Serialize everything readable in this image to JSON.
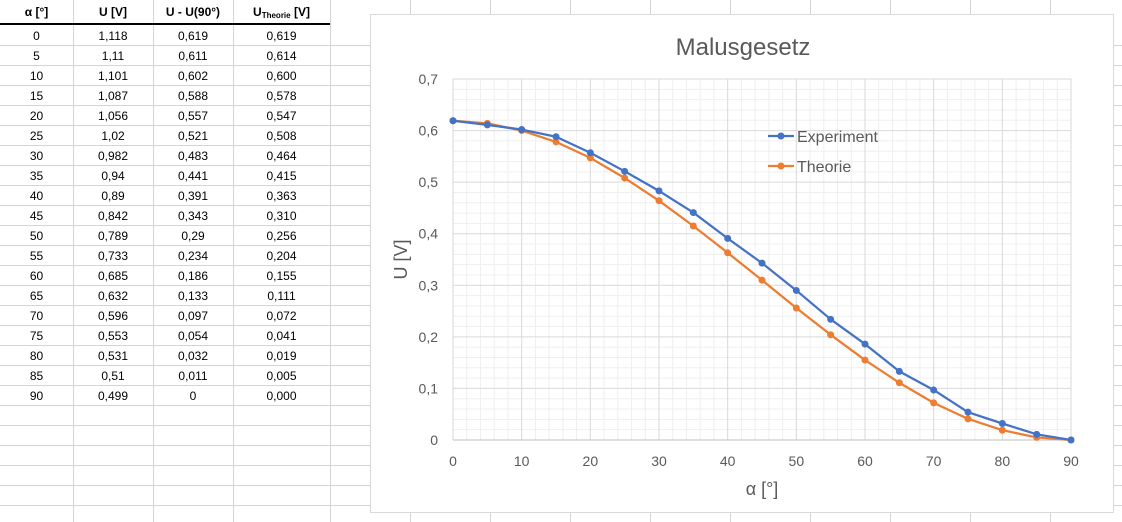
{
  "table": {
    "headers": {
      "alpha": "α [°]",
      "u": "U [V]",
      "u_minus": "U - U(90°)",
      "u_theorie_main": "U",
      "u_theorie_sub": "Theorie",
      "u_theorie_unit": " [V]"
    },
    "rows": [
      [
        "0",
        "1,118",
        "0,619",
        "0,619"
      ],
      [
        "5",
        "1,11",
        "0,611",
        "0,614"
      ],
      [
        "10",
        "1,101",
        "0,602",
        "0,600"
      ],
      [
        "15",
        "1,087",
        "0,588",
        "0,578"
      ],
      [
        "20",
        "1,056",
        "0,557",
        "0,547"
      ],
      [
        "25",
        "1,02",
        "0,521",
        "0,508"
      ],
      [
        "30",
        "0,982",
        "0,483",
        "0,464"
      ],
      [
        "35",
        "0,94",
        "0,441",
        "0,415"
      ],
      [
        "40",
        "0,89",
        "0,391",
        "0,363"
      ],
      [
        "45",
        "0,842",
        "0,343",
        "0,310"
      ],
      [
        "50",
        "0,789",
        "0,29",
        "0,256"
      ],
      [
        "55",
        "0,733",
        "0,234",
        "0,204"
      ],
      [
        "60",
        "0,685",
        "0,186",
        "0,155"
      ],
      [
        "65",
        "0,632",
        "0,133",
        "0,111"
      ],
      [
        "70",
        "0,596",
        "0,097",
        "0,072"
      ],
      [
        "75",
        "0,553",
        "0,054",
        "0,041"
      ],
      [
        "80",
        "0,531",
        "0,032",
        "0,019"
      ],
      [
        "85",
        "0,51",
        "0,011",
        "0,005"
      ],
      [
        "90",
        "0,499",
        "0",
        "0,000"
      ]
    ]
  },
  "chart_data": {
    "type": "line",
    "title": "Malusgesetz",
    "xlabel": "α [°]",
    "ylabel": "U [V]",
    "xlim": [
      0,
      90
    ],
    "ylim": [
      0,
      0.7
    ],
    "x_ticks": [
      0,
      10,
      20,
      30,
      40,
      50,
      60,
      70,
      80,
      90
    ],
    "x_tick_labels": [
      "0",
      "10",
      "20",
      "30",
      "40",
      "50",
      "60",
      "70",
      "80",
      "90"
    ],
    "y_ticks": [
      0,
      0.1,
      0.2,
      0.3,
      0.4,
      0.5,
      0.6,
      0.7
    ],
    "y_tick_labels": [
      "0",
      "0,1",
      "0,2",
      "0,3",
      "0,4",
      "0,5",
      "0,6",
      "0,7"
    ],
    "grid": true,
    "legend_position": "center-right",
    "x": [
      0,
      5,
      10,
      15,
      20,
      25,
      30,
      35,
      40,
      45,
      50,
      55,
      60,
      65,
      70,
      75,
      80,
      85,
      90
    ],
    "series": [
      {
        "name": "Experiment",
        "color": "#4472c4",
        "values": [
          0.619,
          0.611,
          0.602,
          0.588,
          0.557,
          0.521,
          0.483,
          0.441,
          0.391,
          0.343,
          0.29,
          0.234,
          0.186,
          0.133,
          0.097,
          0.054,
          0.032,
          0.011,
          0
        ]
      },
      {
        "name": "Theorie",
        "color": "#ed7d31",
        "values": [
          0.619,
          0.614,
          0.6,
          0.578,
          0.547,
          0.508,
          0.464,
          0.415,
          0.363,
          0.31,
          0.256,
          0.204,
          0.155,
          0.111,
          0.072,
          0.041,
          0.019,
          0.005,
          0.0
        ]
      }
    ]
  }
}
